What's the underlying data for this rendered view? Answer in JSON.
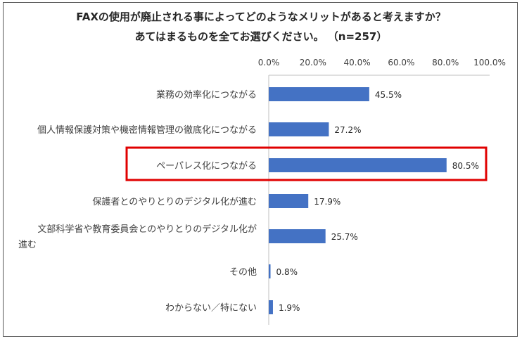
{
  "chart_data": {
    "type": "bar",
    "orientation": "horizontal",
    "title": "FAXの使用が廃止される事によってどのようなメリットがあると考えますか？",
    "subtitle": "あてはまるものを全てお選びください。 （n=257）",
    "categories": [
      "業務の効率化につながる",
      "個人情報保護対策や機密情報管理の徹底化につながる",
      "ペーパレス化につながる",
      "保護者とのやりとりのデジタル化が進む",
      "文部科学省や教育委員会とのやりとりのデジタル化が進む",
      "その他",
      "わからない／特にない"
    ],
    "category_lines": [
      [
        "業務の効率化につながる"
      ],
      [
        "個人情報保護対策や機密情報管理の徹底化につながる"
      ],
      [
        "ペーパレス化につながる"
      ],
      [
        "保護者とのやりとりのデジタル化が進む"
      ],
      [
        "文部科学省や教育委員会とのやりとりのデジタル化が",
        "進む"
      ],
      [
        "その他"
      ],
      [
        "わからない／特にない"
      ]
    ],
    "values": [
      45.5,
      27.2,
      80.5,
      17.9,
      25.7,
      0.8,
      1.9
    ],
    "value_labels": [
      "45.5%",
      "27.2%",
      "80.5%",
      "17.9%",
      "25.7%",
      "0.8%",
      "1.9%"
    ],
    "tick_labels": [
      "0.0%",
      "20.0%",
      "40.0%",
      "60.0%",
      "80.0%",
      "100.0%"
    ],
    "ticks": [
      0,
      20,
      40,
      60,
      80,
      100
    ],
    "xlim": [
      0,
      100
    ],
    "xaxis_position": "top",
    "grid": false,
    "legend": "none",
    "bar_color": "#4472c4",
    "highlight_index": 2,
    "highlight_color": "#e00000"
  }
}
